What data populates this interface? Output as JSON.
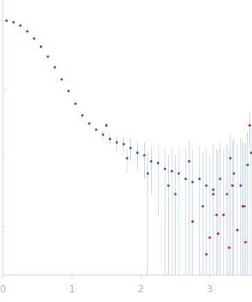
{
  "chart_data": {
    "type": "scatter",
    "log_y": true,
    "xlim": [
      0,
      3.6
    ],
    "xticks": [
      0,
      1,
      2,
      3
    ],
    "ylim": [
      0.0002,
      2
    ],
    "yticks": [
      0.1,
      0.01,
      0.001
    ],
    "error_color": "#c5d3ec",
    "axis_color": "#c5d3ec",
    "series": [
      {
        "color": "#3a66b8",
        "x": [
          0.05,
          0.15,
          0.25,
          0.35,
          0.45,
          0.55,
          0.65,
          0.75,
          0.85,
          0.95,
          1.05,
          1.15,
          1.25,
          1.35,
          1.45,
          1.55,
          1.65,
          1.75,
          1.85,
          1.95,
          2.05,
          2.15,
          2.25,
          2.35,
          2.45,
          2.55,
          2.65,
          2.75,
          2.85,
          2.95,
          3.05,
          3.15,
          3.25,
          3.35,
          3.45,
          3.55,
          1.5,
          1.8,
          2.1,
          2.4,
          2.5,
          2.7,
          2.9,
          3.1,
          3.3,
          3.5,
          3.6
        ],
        "values": [
          1.0,
          0.95,
          0.85,
          0.7,
          0.55,
          0.42,
          0.3,
          0.21,
          0.14,
          0.095,
          0.062,
          0.042,
          0.032,
          0.026,
          0.022,
          0.019,
          0.017,
          0.016,
          0.014,
          0.012,
          0.011,
          0.009,
          0.0085,
          0.007,
          0.0065,
          0.006,
          0.005,
          0.0045,
          0.005,
          0.004,
          0.0035,
          0.005,
          0.003,
          0.006,
          0.004,
          0.008,
          0.03,
          0.01,
          0.006,
          0.004,
          0.003,
          0.009,
          0.002,
          0.0015,
          0.01,
          0.002,
          0.012
        ],
        "errors": [
          0.01,
          0.01,
          0.01,
          0.01,
          0.01,
          0.01,
          0.008,
          0.006,
          0.004,
          0.003,
          0.002,
          0.002,
          0.002,
          0.002,
          0.003,
          0.003,
          0.004,
          0.004,
          0.005,
          0.005,
          0.006,
          0.006,
          0.007,
          0.007,
          0.008,
          0.008,
          0.009,
          0.009,
          0.01,
          0.01,
          0.012,
          0.012,
          0.013,
          0.014,
          0.015,
          0.016,
          0.003,
          0.004,
          0.006,
          0.007,
          0.008,
          0.009,
          0.01,
          0.012,
          0.013,
          0.015,
          0.016
        ]
      },
      {
        "color": "#e02020",
        "x": [
          2.75,
          2.95,
          3.0,
          3.05,
          3.12,
          3.2,
          3.28,
          3.33,
          3.4,
          3.48,
          3.52,
          3.58
        ],
        "values": [
          0.0012,
          0.0004,
          0.0007,
          0.003,
          0.0008,
          0.0015,
          0.0005,
          0.004,
          0.0009,
          0.002,
          0.0006,
          0.03
        ],
        "errors": [
          0.009,
          0.01,
          0.01,
          0.012,
          0.012,
          0.012,
          0.013,
          0.014,
          0.015,
          0.015,
          0.016,
          0.016
        ]
      }
    ]
  }
}
